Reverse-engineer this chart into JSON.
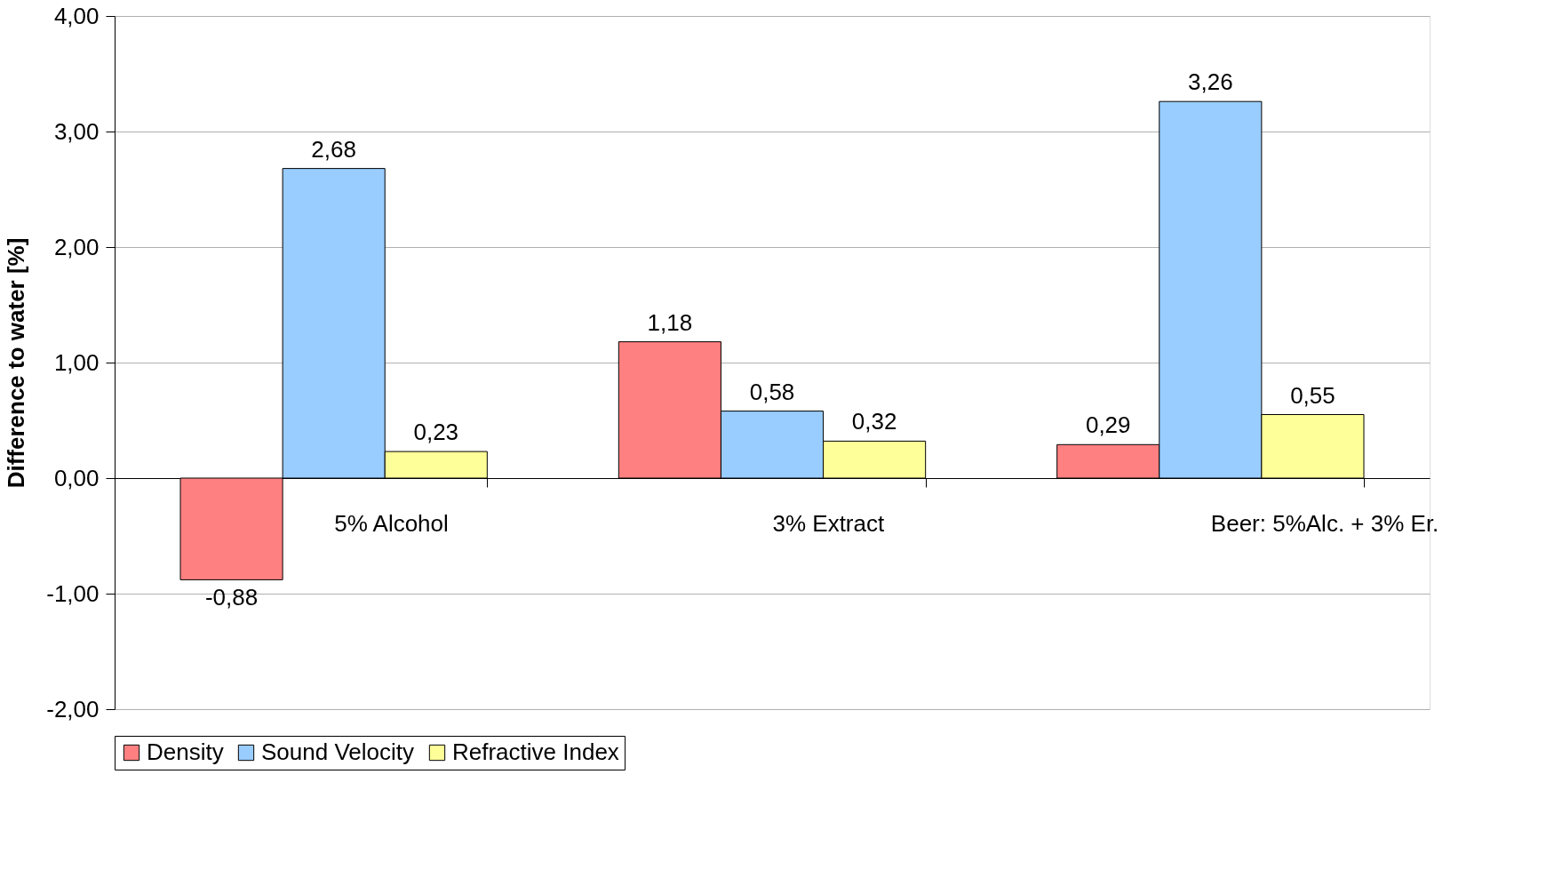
{
  "chart_data": {
    "type": "bar",
    "ylabel": "Difference to water [%]",
    "categories": [
      "5% Alcohol",
      "3% Extract",
      "Beer: 5%Alc. + 3% Er."
    ],
    "series": [
      {
        "name": "Density",
        "color": "#ff8080",
        "values": [
          -0.88,
          1.18,
          0.29
        ],
        "value_labels": [
          "-0,88",
          "1,18",
          "0,29"
        ]
      },
      {
        "name": "Sound Velocity",
        "color": "#99ccff",
        "values": [
          2.68,
          0.58,
          3.26
        ],
        "value_labels": [
          "2,68",
          "0,58",
          "3,26"
        ]
      },
      {
        "name": "Refractive Index",
        "color": "#ffff99",
        "values": [
          0.23,
          0.32,
          0.55
        ],
        "value_labels": [
          "0,23",
          "0,32",
          "0,55"
        ]
      }
    ],
    "ylim": [
      -2,
      4
    ],
    "yticks": [
      {
        "value": -2,
        "label": "-2,00"
      },
      {
        "value": -1,
        "label": "-1,00"
      },
      {
        "value": 0,
        "label": "0,00"
      },
      {
        "value": 1,
        "label": "1,00"
      },
      {
        "value": 2,
        "label": "2,00"
      },
      {
        "value": 3,
        "label": "3,00"
      },
      {
        "value": 4,
        "label": "4,00"
      }
    ],
    "grid": "y",
    "legend": "bottom"
  }
}
